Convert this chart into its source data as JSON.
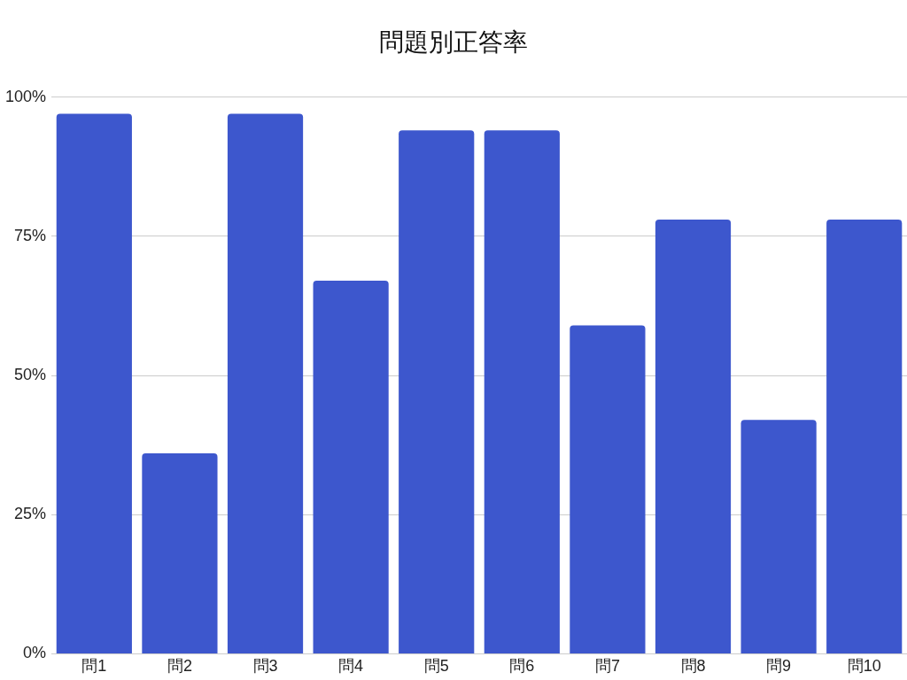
{
  "chart_data": {
    "type": "bar",
    "title": "問題別正答率",
    "categories": [
      "問1",
      "問2",
      "問3",
      "問4",
      "問5",
      "問6",
      "問7",
      "問8",
      "問9",
      "問10"
    ],
    "values": [
      97,
      36,
      97,
      67,
      94,
      94,
      59,
      78,
      42,
      78
    ],
    "color": "#3d57cd",
    "ylim": [
      0,
      100
    ],
    "yticks": [
      {
        "value": 0,
        "label": "0%"
      },
      {
        "value": 25,
        "label": "25%"
      },
      {
        "value": 50,
        "label": "50%"
      },
      {
        "value": 75,
        "label": "75%"
      },
      {
        "value": 100,
        "label": "100%"
      }
    ],
    "grid": "y",
    "legend": false
  }
}
